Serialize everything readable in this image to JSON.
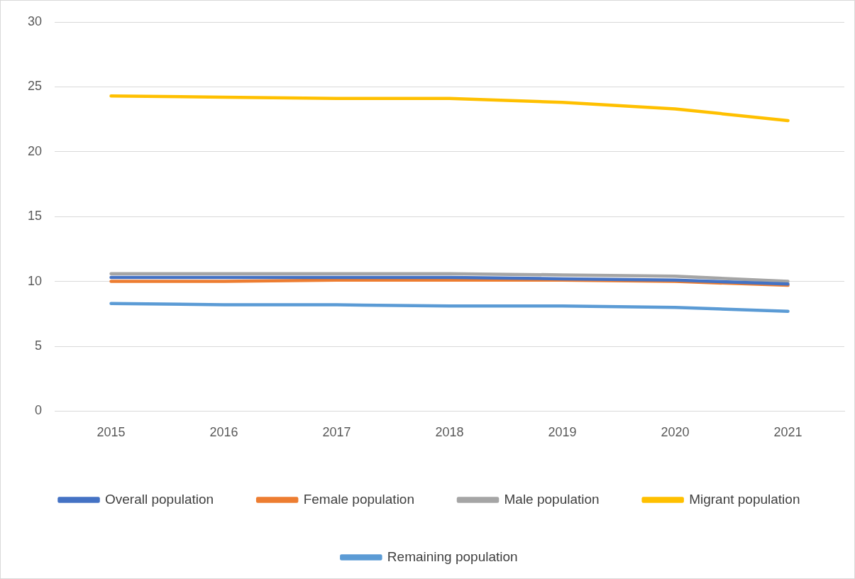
{
  "chart_data": {
    "type": "line",
    "categories": [
      "2015",
      "2016",
      "2017",
      "2018",
      "2019",
      "2020",
      "2021"
    ],
    "series": [
      {
        "name": "Overall population",
        "color": "#4472c4",
        "values": [
          10.3,
          10.3,
          10.3,
          10.3,
          10.2,
          10.1,
          9.8
        ]
      },
      {
        "name": "Female population",
        "color": "#ed7d31",
        "values": [
          10.0,
          10.0,
          10.1,
          10.1,
          10.1,
          10.0,
          9.7
        ]
      },
      {
        "name": "Male population",
        "color": "#a5a5a5",
        "values": [
          10.6,
          10.6,
          10.6,
          10.6,
          10.5,
          10.4,
          10.0
        ]
      },
      {
        "name": "Migrant population",
        "color": "#ffc000",
        "values": [
          24.3,
          24.2,
          24.1,
          24.1,
          23.8,
          23.3,
          22.4
        ]
      },
      {
        "name": "Remaining population",
        "color": "#5b9bd5",
        "values": [
          8.3,
          8.2,
          8.2,
          8.1,
          8.1,
          8.0,
          7.7
        ]
      }
    ],
    "ylim": [
      0,
      30
    ],
    "yticks": [
      0,
      5,
      10,
      15,
      20,
      25,
      30
    ],
    "grid": "y",
    "legend": "bottom",
    "marker": "none",
    "line_style": "solid"
  }
}
